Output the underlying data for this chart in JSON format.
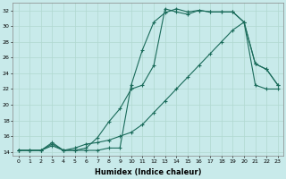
{
  "xlabel": "Humidex (Indice chaleur)",
  "background_color": "#c8eaea",
  "grid_color": "#b0d8d0",
  "line_color": "#1a6b5a",
  "xlim": [
    -0.5,
    23.5
  ],
  "ylim": [
    13.5,
    33.0
  ],
  "yticks": [
    14,
    16,
    18,
    20,
    22,
    24,
    26,
    28,
    30,
    32
  ],
  "xticks": [
    0,
    1,
    2,
    3,
    4,
    5,
    6,
    7,
    8,
    9,
    10,
    11,
    12,
    13,
    14,
    15,
    16,
    17,
    18,
    19,
    20,
    21,
    22,
    23
  ],
  "line1_x": [
    0,
    1,
    2,
    3,
    4,
    5,
    6,
    7,
    8,
    9,
    10,
    11,
    12,
    13,
    14,
    15,
    16,
    17,
    18,
    19,
    20,
    21,
    22,
    23
  ],
  "line1_y": [
    14.2,
    14.2,
    14.2,
    15.2,
    14.2,
    14.2,
    14.2,
    14.2,
    14.5,
    14.5,
    22.5,
    27.0,
    30.5,
    31.7,
    32.2,
    31.8,
    32.0,
    31.8,
    31.8,
    31.8,
    30.5,
    25.2,
    24.5,
    22.5
  ],
  "line2_x": [
    0,
    1,
    2,
    3,
    4,
    5,
    6,
    7,
    8,
    9,
    10,
    11,
    12,
    13,
    14,
    15,
    16,
    17,
    18,
    19,
    20,
    21,
    22,
    23
  ],
  "line2_y": [
    14.2,
    14.2,
    14.2,
    15.0,
    14.2,
    14.2,
    14.5,
    15.8,
    17.8,
    19.5,
    22.0,
    22.5,
    25.0,
    32.2,
    31.8,
    31.5,
    32.0,
    31.8,
    31.8,
    31.8,
    30.5,
    25.2,
    24.5,
    22.5
  ],
  "line3_x": [
    0,
    1,
    2,
    3,
    4,
    5,
    6,
    7,
    8,
    9,
    10,
    11,
    12,
    13,
    14,
    15,
    16,
    17,
    18,
    19,
    20,
    21,
    22,
    23
  ],
  "line3_y": [
    14.2,
    14.2,
    14.2,
    14.8,
    14.2,
    14.5,
    15.0,
    15.2,
    15.5,
    16.0,
    16.5,
    17.5,
    19.0,
    20.5,
    22.0,
    23.5,
    25.0,
    26.5,
    28.0,
    29.5,
    30.5,
    22.5,
    22.0,
    22.0
  ]
}
